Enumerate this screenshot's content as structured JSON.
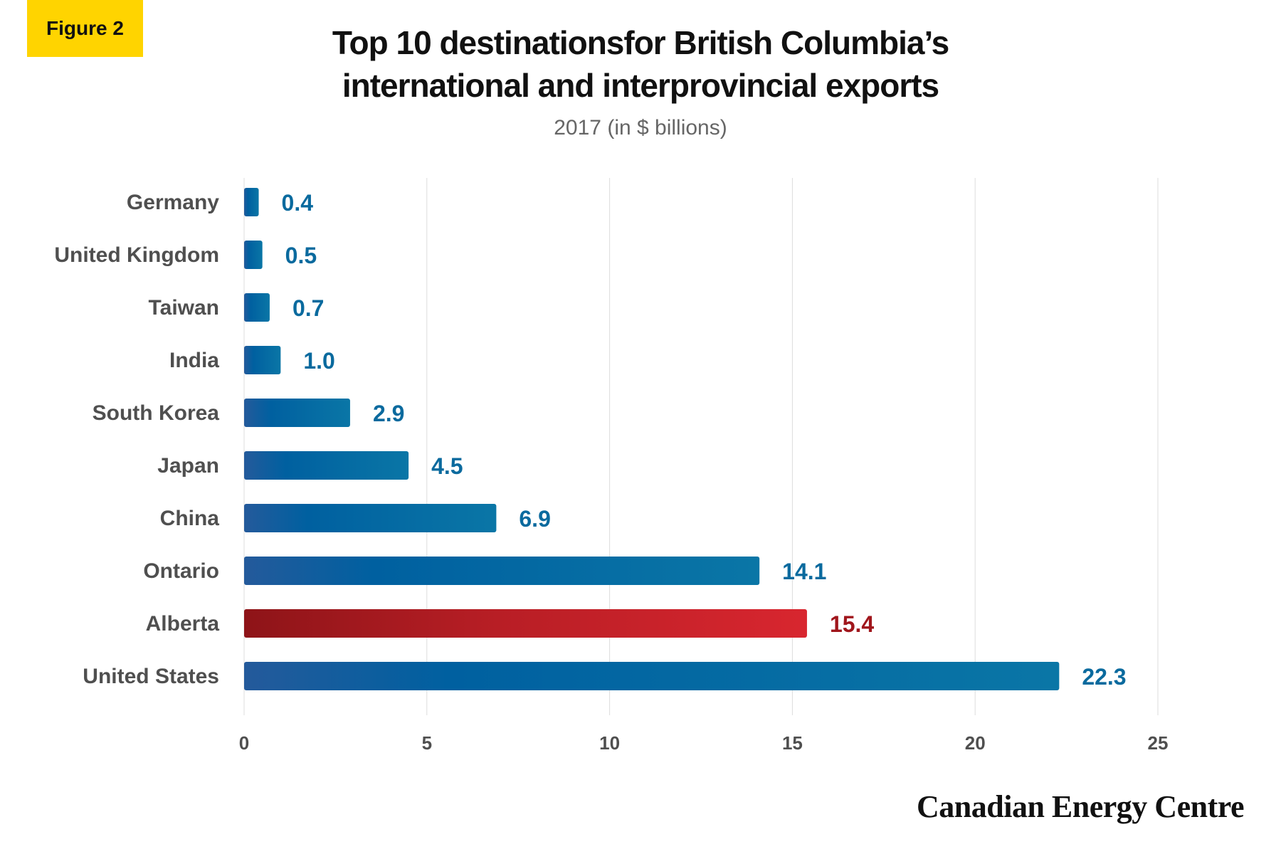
{
  "badge": "Figure 2",
  "title_lines": [
    "Top 10 destinationsfor British Columbia’s",
    "international and interprovincial exports"
  ],
  "subtitle": "2017 (in $ billions)",
  "brand": "Canadian Energy Centre",
  "chart_data": {
    "type": "bar",
    "orientation": "horizontal",
    "title": "Top 10 destinationsfor British Columbia’s international and interprovincial exports",
    "subtitle": "2017 (in $ billions)",
    "categories": [
      "Germany",
      "United Kingdom",
      "Taiwan",
      "India",
      "South Korea",
      "Japan",
      "China",
      "Ontario",
      "Alberta",
      "United States"
    ],
    "values": [
      0.4,
      0.5,
      0.7,
      1.0,
      2.9,
      4.5,
      6.9,
      14.1,
      15.4,
      22.3
    ],
    "value_labels": [
      "0.4",
      "0.5",
      "0.7",
      "1.0",
      "2.9",
      "4.5",
      "6.9",
      "14.1",
      "15.4",
      "22.3"
    ],
    "xlim": [
      0,
      25
    ],
    "xticks": [
      0,
      5,
      10,
      15,
      20,
      25
    ],
    "grid": "vertical",
    "highlight_category": "Alberta",
    "colors": {
      "bar": "#0a6fa3",
      "bar_dark": "#245a9b",
      "highlight": "#d8262f",
      "highlight_dark": "#8e1418",
      "label": "#0a6a9e",
      "highlight_label": "#a0161c",
      "category_text": "#4f4f4f",
      "grid": "#dddddd"
    }
  }
}
